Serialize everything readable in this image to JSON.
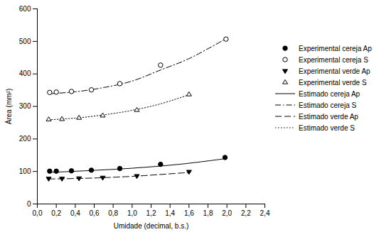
{
  "chart_data": {
    "type": "scatter",
    "x_label": "Umidade (decimal, b.s.)",
    "y_label": "Área (mm²)",
    "xlim": [
      0,
      2.4
    ],
    "ylim": [
      0,
      600
    ],
    "xticks": [
      {
        "value": 0,
        "label": "0,0"
      },
      {
        "value": 0.2,
        "label": "0,2"
      },
      {
        "value": 0.4,
        "label": "0,4"
      },
      {
        "value": 0.6,
        "label": "0,6"
      },
      {
        "value": 0.8,
        "label": "0,8"
      },
      {
        "value": 1.0,
        "label": "1,0"
      },
      {
        "value": 1.2,
        "label": "1,2"
      },
      {
        "value": 1.4,
        "label": "1,4"
      },
      {
        "value": 1.6,
        "label": "1,6"
      },
      {
        "value": 1.8,
        "label": "1,8"
      },
      {
        "value": 2.0,
        "label": "2,0"
      },
      {
        "value": 2.2,
        "label": "2,2"
      },
      {
        "value": 2.4,
        "label": "2,4"
      }
    ],
    "yticks": [
      0,
      100,
      200,
      300,
      400,
      500,
      600
    ],
    "legend": "right",
    "series": [
      {
        "name": "Experimental cereja Ap",
        "type": "scatter",
        "marker": "circle",
        "color": "#000000",
        "x": [
          0.13,
          0.2,
          0.36,
          0.57,
          0.87,
          1.3,
          1.98
        ],
        "values": [
          101,
          101,
          102,
          104,
          109,
          122,
          143
        ]
      },
      {
        "name": "Experimental cereja S",
        "type": "scatter",
        "marker": "circle-open",
        "color": "#000000",
        "x": [
          0.13,
          0.2,
          0.36,
          0.57,
          0.87,
          1.3,
          1.99
        ],
        "values": [
          343,
          344,
          346,
          351,
          370,
          427,
          507
        ]
      },
      {
        "name": "Experimental verde Ap",
        "type": "scatter",
        "marker": "triangle-down",
        "color": "#000000",
        "x": [
          0.12,
          0.26,
          0.44,
          0.69,
          1.05,
          1.6
        ],
        "values": [
          78,
          78,
          79,
          81,
          86,
          99
        ]
      },
      {
        "name": "Experimental verde S",
        "type": "scatter",
        "marker": "triangle-open",
        "color": "#000000",
        "x": [
          0.12,
          0.26,
          0.44,
          0.69,
          1.05,
          1.6
        ],
        "values": [
          260,
          261,
          265,
          272,
          289,
          337
        ]
      },
      {
        "name": "Estimado cereja Ap",
        "type": "line",
        "line_style": "solid",
        "color": "#000000",
        "x": [
          0.12,
          0.5,
          1.0,
          1.5,
          2.0
        ],
        "values": [
          97,
          102,
          110,
          122,
          140
        ]
      },
      {
        "name": "Estimado cereja S",
        "type": "line",
        "line_style": "dashdot",
        "color": "#000000",
        "x": [
          0.12,
          0.4,
          0.7,
          1.0,
          1.3,
          1.6,
          2.0
        ],
        "values": [
          339,
          345,
          358,
          378,
          412,
          447,
          510
        ]
      },
      {
        "name": "Estimado verde Ap",
        "type": "line",
        "line_style": "dashed",
        "color": "#000000",
        "x": [
          0.12,
          0.5,
          1.0,
          1.6
        ],
        "values": [
          77,
          79,
          85,
          97
        ]
      },
      {
        "name": "Estimado verde S",
        "type": "line",
        "line_style": "dotted",
        "color": "#000000",
        "x": [
          0.12,
          0.4,
          0.7,
          1.0,
          1.3,
          1.6
        ],
        "values": [
          259,
          264,
          274,
          288,
          308,
          336
        ]
      }
    ]
  }
}
